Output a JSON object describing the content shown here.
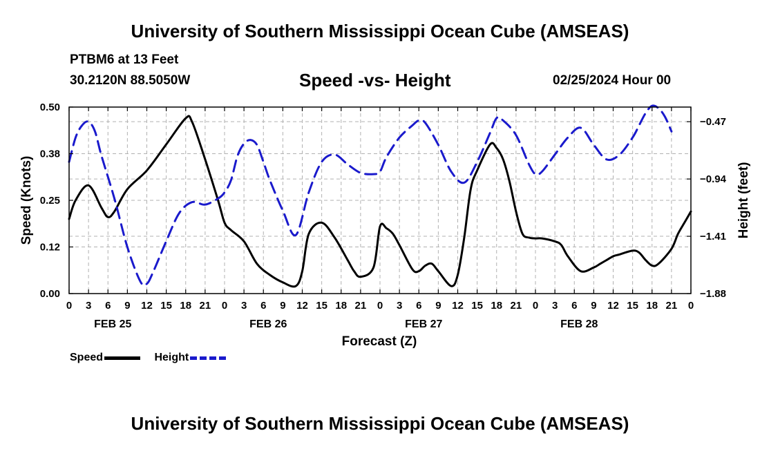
{
  "header": {
    "main_title": "University of Southern Mississippi Ocean Cube (AMSEAS)",
    "station": "PTBM6 at 13 Feet",
    "coords": "30.2120N  88.5050W",
    "subtitle": "Speed -vs- Height",
    "datetime": "02/25/2024 Hour 00"
  },
  "footer": {
    "title": "University of Southern Mississippi Ocean Cube (AMSEAS)"
  },
  "colors": {
    "speed": "#000000",
    "height": "#1a1acc",
    "grid": "#b0b0b0"
  },
  "chart_data": {
    "type": "line",
    "title": "Speed -vs- Height",
    "xlabel": "Forecast (Z)",
    "ylabel_left": "Speed (Knots)",
    "ylabel_right": "Height (feet)",
    "x_range_hours": [
      0,
      96
    ],
    "x_tick_labels": [
      "0",
      "3",
      "6",
      "9",
      "12",
      "15",
      "18",
      "21",
      "0",
      "3",
      "6",
      "9",
      "12",
      "15",
      "18",
      "21",
      "0",
      "3",
      "6",
      "9",
      "12",
      "15",
      "18",
      "21",
      "0",
      "3",
      "6",
      "9",
      "12",
      "15",
      "18",
      "21",
      "0"
    ],
    "date_labels": [
      {
        "hour": 6,
        "label": "FEB 25"
      },
      {
        "hour": 30,
        "label": "FEB 26"
      },
      {
        "hour": 54,
        "label": "FEB 27"
      },
      {
        "hour": 78,
        "label": "FEB 28"
      }
    ],
    "ylim_left": [
      0,
      0.5
    ],
    "y_ticks_left": [
      "0.00",
      "0.12",
      "0.25",
      "0.38",
      "0.50"
    ],
    "ylim_right": [
      -1.88,
      -0.35
    ],
    "y_ticks_right": [
      {
        "value": -0.47,
        "label": "−0.47"
      },
      {
        "value": -0.94,
        "label": "−0.94"
      },
      {
        "value": -1.41,
        "label": "−1.41"
      },
      {
        "value": -1.88,
        "label": "−1.88"
      }
    ],
    "grid": true,
    "legend": [
      {
        "name": "Speed",
        "style": "solid"
      },
      {
        "name": "Height",
        "style": "dashed"
      }
    ],
    "series": [
      {
        "name": "Speed",
        "axis": "left",
        "x": [
          0,
          1,
          3,
          5,
          6,
          7,
          9,
          12,
          15,
          18,
          19,
          21,
          23,
          24,
          25,
          27,
          29,
          31,
          33,
          35,
          36,
          37,
          39,
          41,
          43,
          44,
          45,
          47,
          48,
          49,
          50,
          51,
          53,
          54,
          55,
          56,
          57,
          59,
          60,
          61,
          62,
          63,
          65,
          66,
          67,
          68,
          69,
          70,
          71,
          72,
          73,
          75,
          76,
          77,
          79,
          81,
          82,
          83,
          84,
          85,
          87,
          88,
          89,
          90,
          91,
          93,
          94,
          95,
          96
        ],
        "y": [
          0.2,
          0.25,
          0.29,
          0.23,
          0.205,
          0.22,
          0.28,
          0.33,
          0.4,
          0.47,
          0.46,
          0.36,
          0.25,
          0.19,
          0.17,
          0.14,
          0.08,
          0.05,
          0.03,
          0.02,
          0.06,
          0.16,
          0.19,
          0.15,
          0.09,
          0.06,
          0.045,
          0.07,
          0.18,
          0.175,
          0.16,
          0.13,
          0.065,
          0.06,
          0.075,
          0.08,
          0.06,
          0.02,
          0.05,
          0.15,
          0.28,
          0.33,
          0.4,
          0.39,
          0.36,
          0.3,
          0.22,
          0.16,
          0.15,
          0.148,
          0.148,
          0.14,
          0.13,
          0.1,
          0.06,
          0.07,
          0.08,
          0.09,
          0.1,
          0.105,
          0.115,
          0.11,
          0.09,
          0.075,
          0.08,
          0.12,
          0.16,
          0.19,
          0.22
        ]
      },
      {
        "name": "Height",
        "axis": "right",
        "x": [
          0,
          1,
          2,
          3,
          4,
          5,
          7,
          9,
          11,
          12,
          13,
          15,
          17,
          19,
          21,
          23,
          24,
          25,
          26,
          27,
          28,
          29,
          30,
          31,
          33,
          35,
          37,
          39,
          41,
          43,
          45,
          47,
          48,
          49,
          51,
          53,
          54,
          55,
          57,
          59,
          61,
          63,
          65,
          66,
          67,
          69,
          71,
          72,
          73,
          75,
          77,
          79,
          81,
          83,
          85,
          87,
          88,
          89,
          90,
          91,
          92,
          93
        ],
        "y": [
          -0.8,
          -0.6,
          -0.5,
          -0.47,
          -0.55,
          -0.75,
          -1.1,
          -1.5,
          -1.78,
          -1.8,
          -1.7,
          -1.45,
          -1.22,
          -1.13,
          -1.15,
          -1.1,
          -1.05,
          -0.95,
          -0.75,
          -0.65,
          -0.62,
          -0.66,
          -0.8,
          -0.95,
          -1.2,
          -1.4,
          -1.05,
          -0.8,
          -0.74,
          -0.82,
          -0.89,
          -0.9,
          -0.88,
          -0.76,
          -0.6,
          -0.5,
          -0.46,
          -0.48,
          -0.66,
          -0.88,
          -0.97,
          -0.8,
          -0.56,
          -0.44,
          -0.46,
          -0.58,
          -0.82,
          -0.9,
          -0.88,
          -0.74,
          -0.6,
          -0.52,
          -0.66,
          -0.78,
          -0.74,
          -0.6,
          -0.5,
          -0.4,
          -0.34,
          -0.36,
          -0.43,
          -0.55
        ]
      }
    ]
  }
}
